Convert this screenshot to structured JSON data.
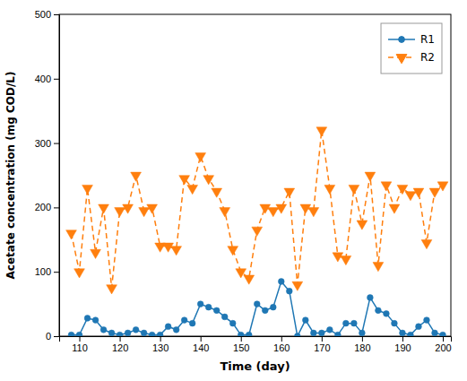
{
  "chart_data": {
    "type": "line",
    "xlabel": "Time (day)",
    "ylabel": "Acetate concentration (mg COD/L)",
    "x": [
      108,
      110,
      112,
      114,
      116,
      118,
      120,
      122,
      124,
      126,
      128,
      130,
      132,
      134,
      136,
      138,
      140,
      142,
      144,
      146,
      148,
      150,
      152,
      154,
      156,
      158,
      160,
      162,
      164,
      166,
      168,
      170,
      172,
      174,
      176,
      178,
      180,
      182,
      184,
      186,
      188,
      190,
      192,
      194,
      196,
      198,
      200
    ],
    "series": [
      {
        "name": "R1",
        "marker": "circle",
        "line_style": "solid",
        "values": [
          2,
          2,
          28,
          25,
          10,
          5,
          2,
          5,
          10,
          5,
          2,
          2,
          15,
          10,
          25,
          20,
          50,
          45,
          40,
          30,
          20,
          2,
          2,
          50,
          40,
          45,
          85,
          70,
          0,
          25,
          5,
          5,
          10,
          2,
          20,
          20,
          5,
          60,
          40,
          35,
          20,
          5,
          2,
          15,
          25,
          5,
          2
        ]
      },
      {
        "name": "R2",
        "marker": "triangle-down",
        "line_style": "dashed",
        "values": [
          160,
          100,
          230,
          130,
          200,
          75,
          195,
          200,
          250,
          195,
          200,
          140,
          140,
          135,
          245,
          230,
          280,
          245,
          225,
          195,
          135,
          100,
          90,
          165,
          200,
          195,
          200,
          225,
          80,
          200,
          195,
          320,
          230,
          125,
          120,
          230,
          175,
          250,
          110,
          235,
          200,
          230,
          220,
          225,
          145,
          225,
          235
        ]
      }
    ],
    "xlim": [
      105,
      202
    ],
    "ylim": [
      0,
      500
    ],
    "xticks": [
      110,
      120,
      130,
      140,
      150,
      160,
      170,
      180,
      190,
      200
    ],
    "yticks": [
      0,
      100,
      200,
      300,
      400,
      500
    ],
    "grid": false,
    "legend": "upper right"
  }
}
